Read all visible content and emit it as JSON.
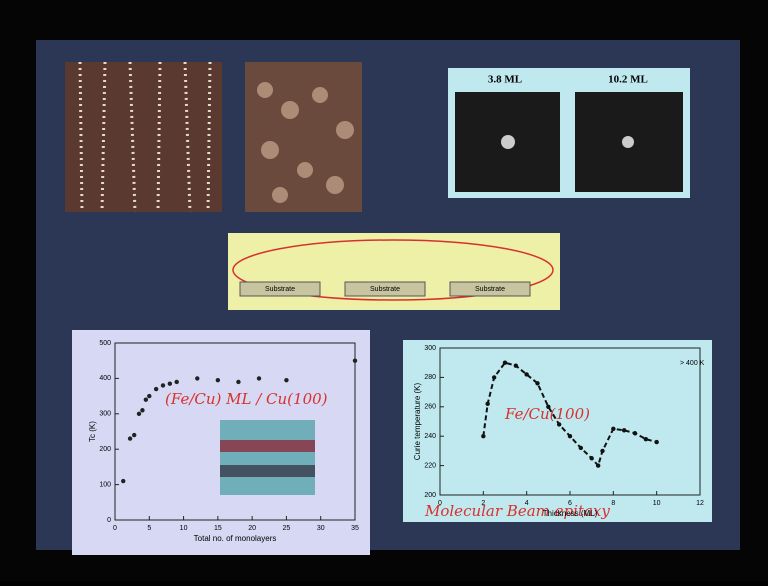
{
  "slide": {
    "diffraction_labels": [
      "3.8 ML",
      "10.2 ML"
    ],
    "growth_labels": [
      "Substrate",
      "Substrate",
      "Substrate"
    ],
    "annotations": [
      "(Fe/Cu) ML / Cu(100)",
      "Fe/Cu(100)",
      "Molecular Beam epitaxy"
    ]
  },
  "chart_data": [
    {
      "type": "scatter",
      "ylabel": "Tc (K)",
      "xlabel": "Total no. of monolayers",
      "color": "#222222",
      "xlim": [
        0,
        35
      ],
      "xticks": [
        0,
        5,
        10,
        15,
        20,
        25,
        30,
        35
      ],
      "ylim": [
        0,
        500
      ],
      "yticks": [
        0,
        100,
        200,
        300,
        400,
        500
      ],
      "x": [
        1.2,
        2.2,
        2.8,
        3.5,
        4,
        4.5,
        5,
        6,
        7,
        8,
        9,
        12,
        15,
        18,
        21,
        25,
        35
      ],
      "values": [
        110,
        230,
        240,
        300,
        310,
        340,
        350,
        370,
        380,
        385,
        390,
        400,
        395,
        390,
        400,
        395,
        450
      ]
    },
    {
      "type": "scatter",
      "ylabel": "Curie temperature (K)",
      "xlabel": "Thickness (ML)",
      "color": "#111111",
      "line_style": "dashed",
      "annotation": "> 400 K",
      "xlim": [
        0,
        12
      ],
      "xticks": [
        0,
        2,
        4,
        6,
        8,
        10,
        12
      ],
      "ylim": [
        200,
        300
      ],
      "yticks": [
        200,
        220,
        240,
        260,
        280,
        300
      ],
      "x": [
        2,
        2.2,
        2.5,
        3,
        3.5,
        4,
        4.5,
        5,
        5.5,
        6,
        6.5,
        7,
        7.3,
        7.5,
        8,
        8.5,
        9,
        9.5,
        10
      ],
      "values": [
        240,
        262,
        280,
        290,
        288,
        282,
        276,
        260,
        248,
        240,
        232,
        225,
        220,
        230,
        245,
        244,
        242,
        238,
        236
      ]
    }
  ]
}
